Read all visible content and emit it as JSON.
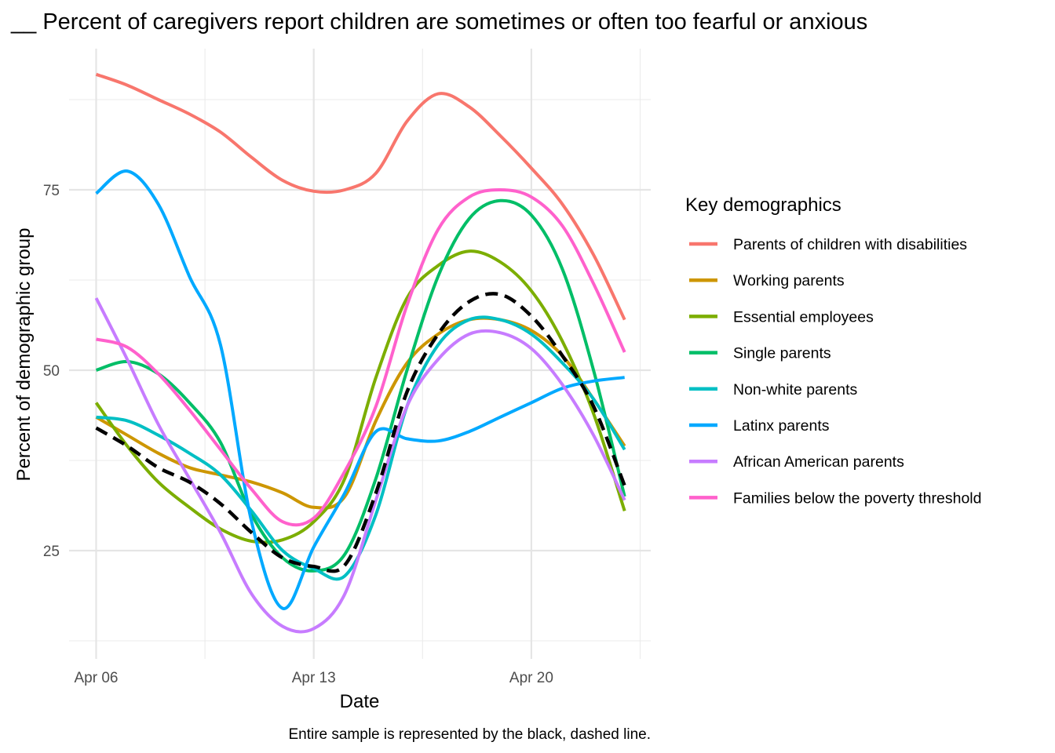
{
  "chart_data": {
    "type": "line",
    "title": "__ Percent of caregivers report children are sometimes or often too fearful or anxious",
    "xlabel": "Date",
    "ylabel": "Percent of demographic group",
    "caption": "Entire sample is represented by the black, dashed line.",
    "x_tick_labels": [
      "Apr 06",
      "Apr 13",
      "Apr 20"
    ],
    "y_tick_labels": [
      "25",
      "50",
      "75"
    ],
    "ylim": [
      12.5,
      90
    ],
    "xlim": [
      "2020-04-06",
      "2020-04-23"
    ],
    "grid": true,
    "legend": {
      "title": "Key demographics",
      "placement": "right"
    },
    "x": [
      "2020-04-06",
      "2020-04-07",
      "2020-04-08",
      "2020-04-09",
      "2020-04-10",
      "2020-04-11",
      "2020-04-12",
      "2020-04-13",
      "2020-04-14",
      "2020-04-15",
      "2020-04-16",
      "2020-04-17",
      "2020-04-18",
      "2020-04-19",
      "2020-04-20",
      "2020-04-21",
      "2020-04-22",
      "2020-04-23"
    ],
    "series": [
      {
        "name": "Parents of children with disabilities",
        "color": "#F8766D",
        "values": [
          91,
          89.5,
          87.5,
          85.5,
          83,
          79.5,
          76.3,
          74.8,
          75,
          77.3,
          84.5,
          88.3,
          86.5,
          82.5,
          78,
          73,
          66,
          57
        ]
      },
      {
        "name": "Working parents",
        "color": "#CD9600",
        "values": [
          43.5,
          41,
          38.5,
          36.5,
          35.5,
          34.5,
          33,
          31,
          32.5,
          43,
          51,
          55,
          57,
          57,
          55.5,
          52,
          46,
          39.5
        ]
      },
      {
        "name": "Essential employees",
        "color": "#7CAE00",
        "values": [
          45.5,
          39.5,
          34.5,
          31,
          28,
          26.3,
          26.5,
          29,
          35,
          49,
          60,
          64.5,
          66.5,
          65,
          61,
          54,
          44,
          30.5
        ]
      },
      {
        "name": "Single parents",
        "color": "#00BE67",
        "values": [
          50,
          51.2,
          49.5,
          45.5,
          40,
          30,
          24,
          22.2,
          24.5,
          35,
          50,
          63,
          71,
          73.5,
          71.5,
          64,
          50,
          32.5
        ]
      },
      {
        "name": "Non-white parents",
        "color": "#00BFC4",
        "values": [
          43.5,
          43,
          41,
          38.5,
          35.5,
          30.5,
          25,
          22.5,
          21.5,
          30,
          45,
          53.5,
          57,
          57,
          55,
          51,
          46,
          39
        ]
      },
      {
        "name": "Latinx parents",
        "color": "#00A9FF",
        "values": [
          74.5,
          77.6,
          73,
          63,
          53.5,
          29,
          17,
          25.5,
          33,
          41.5,
          40.5,
          40.2,
          41.5,
          43.5,
          45.5,
          47.5,
          48.5,
          49
        ]
      },
      {
        "name": "African American parents",
        "color": "#C77CFF",
        "values": [
          60,
          51.5,
          42.5,
          35,
          27.5,
          19,
          14.5,
          14.2,
          19,
          32,
          45,
          51.5,
          55,
          55.2,
          53,
          48,
          41,
          32
        ]
      },
      {
        "name": "Families below the poverty threshold",
        "color": "#FF61CC",
        "values": [
          54.3,
          53.2,
          49.5,
          44.5,
          39,
          33.5,
          29,
          29.5,
          36,
          45,
          59,
          69.5,
          74,
          75,
          74,
          70,
          62,
          52.5
        ]
      },
      {
        "name": "",
        "color": "#000000",
        "dashed": true,
        "values": [
          42,
          39.5,
          36.5,
          34.5,
          31.5,
          27.5,
          24,
          22.8,
          23,
          33,
          47,
          55,
          59.5,
          60.5,
          57.5,
          52,
          45,
          34
        ]
      }
    ]
  }
}
